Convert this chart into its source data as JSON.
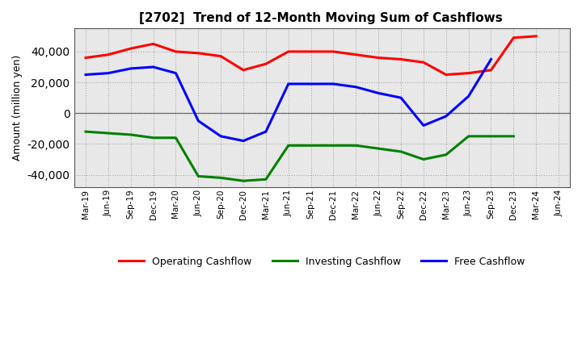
{
  "title": "[2702]  Trend of 12-Month Moving Sum of Cashflows",
  "ylabel": "Amount (million yen)",
  "background_color": "#ffffff",
  "plot_background_color": "#e8e8e8",
  "grid_color": "#999999",
  "xlabels": [
    "Mar-19",
    "Jun-19",
    "Sep-19",
    "Dec-19",
    "Mar-20",
    "Jun-20",
    "Sep-20",
    "Dec-20",
    "Mar-21",
    "Jun-21",
    "Sep-21",
    "Dec-21",
    "Mar-22",
    "Jun-22",
    "Sep-22",
    "Dec-22",
    "Mar-23",
    "Jun-23",
    "Sep-23",
    "Dec-23",
    "Mar-24",
    "Jun-24"
  ],
  "operating": [
    36000,
    38000,
    42000,
    45000,
    40000,
    39000,
    37000,
    28000,
    32000,
    40000,
    40000,
    40000,
    38000,
    36000,
    35000,
    33000,
    25000,
    26000,
    28000,
    49000,
    50000,
    null
  ],
  "investing": [
    -12000,
    -13000,
    -14000,
    -16000,
    -16000,
    -41000,
    -42000,
    -44000,
    -43000,
    -21000,
    -21000,
    -21000,
    -21000,
    -23000,
    -25000,
    -30000,
    -27000,
    -15000,
    -15000,
    -15000,
    null,
    null
  ],
  "free": [
    25000,
    26000,
    29000,
    30000,
    26000,
    -5000,
    -15000,
    -18000,
    -12000,
    19000,
    19000,
    19000,
    17000,
    13000,
    10000,
    -8000,
    -2000,
    11000,
    35000,
    null,
    null,
    null
  ],
  "ylim": [
    -48000,
    55000
  ],
  "yticks": [
    -40000,
    -20000,
    0,
    20000,
    40000
  ],
  "operating_color": "#ff0000",
  "investing_color": "#008000",
  "free_color": "#0000ff",
  "linewidth": 2.2
}
